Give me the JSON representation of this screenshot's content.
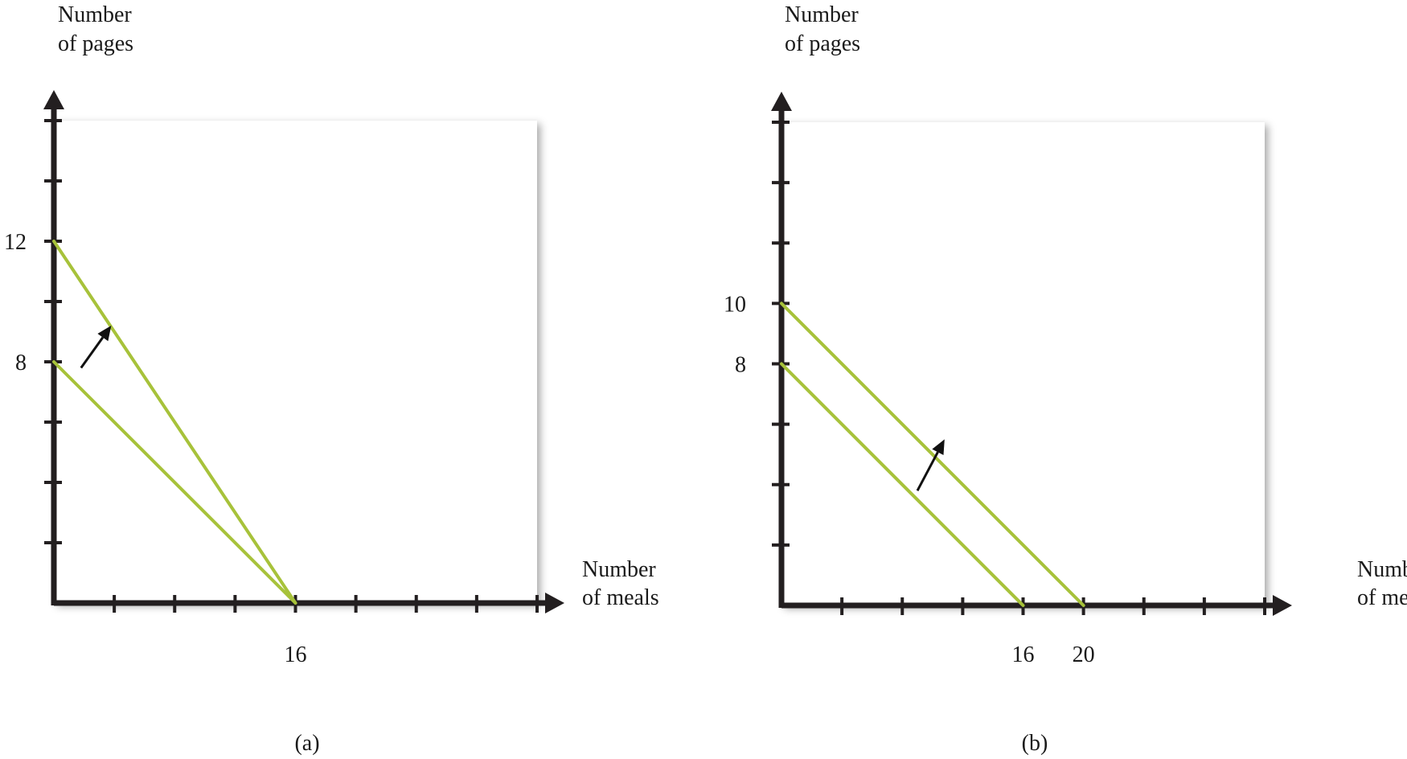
{
  "chart_data": [
    {
      "type": "line",
      "panel_label": "(a)",
      "xlabel": [
        "Number",
        "of meals"
      ],
      "ylabel": [
        "Number",
        "of pages"
      ],
      "x_ticks": 8,
      "y_ticks": 8,
      "xlim": [
        0,
        32
      ],
      "ylim": [
        0,
        16
      ],
      "x_tick_labels": [
        {
          "value": 16,
          "label": "16"
        }
      ],
      "y_tick_labels": [
        {
          "value": 12,
          "label": "12"
        },
        {
          "value": 8,
          "label": "8"
        }
      ],
      "series": [
        {
          "name": "budget-line-original",
          "points": [
            [
              0,
              8
            ],
            [
              16,
              0
            ]
          ]
        },
        {
          "name": "budget-line-new",
          "points": [
            [
              0,
              12
            ],
            [
              16,
              0
            ]
          ]
        }
      ],
      "annotation": {
        "type": "arrow",
        "from": [
          1.8,
          7.8
        ],
        "to": [
          3.8,
          9.2
        ]
      }
    },
    {
      "type": "line",
      "panel_label": "(b)",
      "xlabel": [
        "Number",
        "of meals"
      ],
      "ylabel": [
        "Number",
        "of pages"
      ],
      "x_ticks": 8,
      "y_ticks": 8,
      "xlim": [
        0,
        32
      ],
      "ylim": [
        0,
        16
      ],
      "x_tick_labels": [
        {
          "value": 16,
          "label": "16"
        },
        {
          "value": 20,
          "label": "20"
        }
      ],
      "y_tick_labels": [
        {
          "value": 10,
          "label": "10"
        },
        {
          "value": 8,
          "label": "8"
        }
      ],
      "series": [
        {
          "name": "budget-line-original",
          "points": [
            [
              0,
              8
            ],
            [
              16,
              0
            ]
          ]
        },
        {
          "name": "budget-line-new",
          "points": [
            [
              0,
              10
            ],
            [
              20,
              0
            ]
          ]
        }
      ],
      "annotation": {
        "type": "arrow",
        "from": [
          9.0,
          3.8
        ],
        "to": [
          10.8,
          5.5
        ]
      }
    }
  ]
}
